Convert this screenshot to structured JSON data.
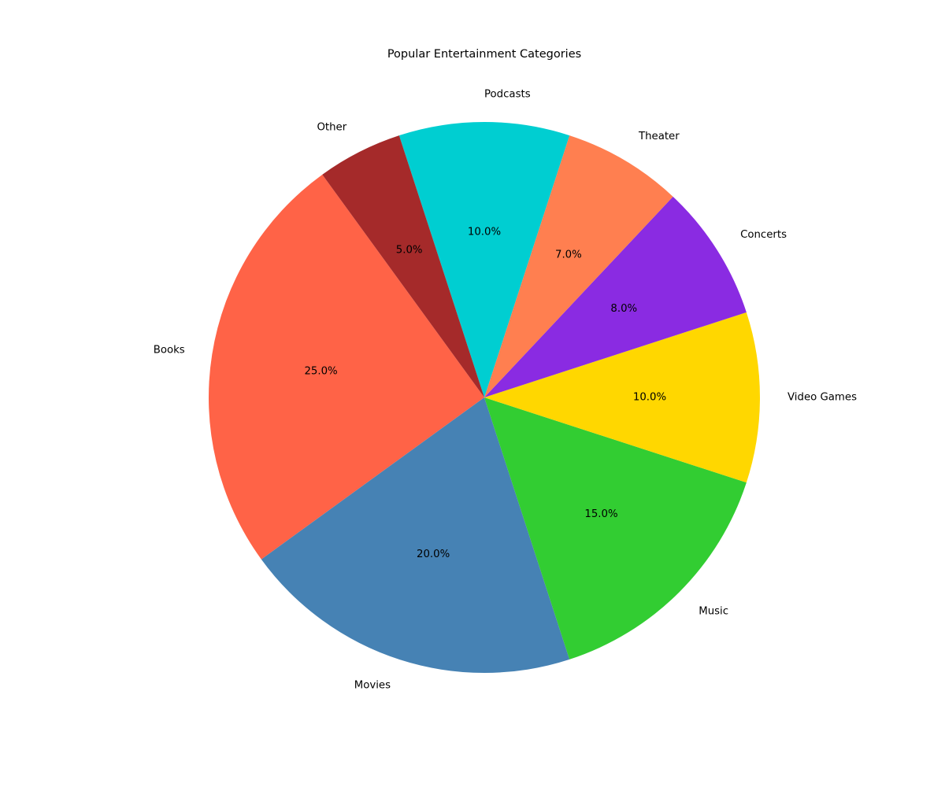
{
  "chart_data": {
    "type": "pie",
    "title": "Popular Entertainment Categories",
    "start_angle_deg": 126,
    "direction": "counterclockwise",
    "legend": "none",
    "slices": [
      {
        "label": "Books",
        "value": 25,
        "pct_label": "25.0%",
        "color": "#FF6347"
      },
      {
        "label": "Movies",
        "value": 20,
        "pct_label": "20.0%",
        "color": "#4682B4"
      },
      {
        "label": "Music",
        "value": 15,
        "pct_label": "15.0%",
        "color": "#32CD32"
      },
      {
        "label": "Video Games",
        "value": 10,
        "pct_label": "10.0%",
        "color": "#FFD700"
      },
      {
        "label": "Concerts",
        "value": 8,
        "pct_label": "8.0%",
        "color": "#8A2BE2"
      },
      {
        "label": "Theater",
        "value": 7,
        "pct_label": "7.0%",
        "color": "#FF7F50"
      },
      {
        "label": "Podcasts",
        "value": 10,
        "pct_label": "10.0%",
        "color": "#00CED1"
      },
      {
        "label": "Other",
        "value": 5,
        "pct_label": "5.0%",
        "color": "#A52A2A"
      }
    ]
  }
}
